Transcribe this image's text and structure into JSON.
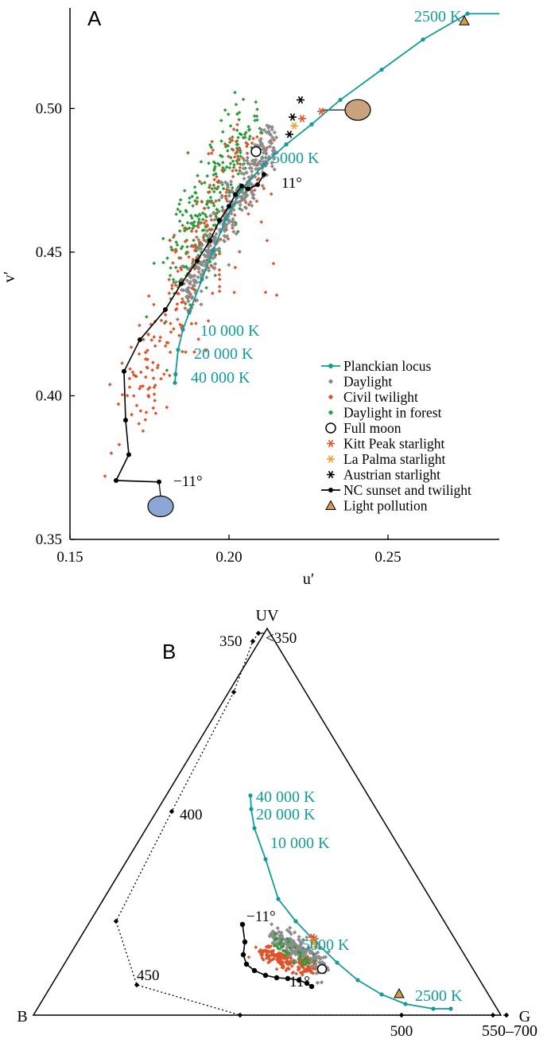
{
  "chart_data": [
    {
      "panel": "A",
      "type": "scatter",
      "xlabel": "u′",
      "ylabel": "v′",
      "xlim": [
        0.15,
        0.285
      ],
      "ylim": [
        0.35,
        0.535
      ],
      "xticks": [
        "0.15",
        "0.20",
        "0.25"
      ],
      "yticks": [
        "0.35",
        "0.40",
        "0.45",
        "0.50"
      ],
      "grid": false,
      "legend_position": "bottom-right",
      "legend": [
        {
          "name": "Planckian locus",
          "marker": "line-dot",
          "color": "#139a9a"
        },
        {
          "name": "Daylight",
          "marker": "diamond",
          "color": "#8c8c8c"
        },
        {
          "name": "Civil twilight",
          "marker": "diamond",
          "color": "#e0522a"
        },
        {
          "name": "Daylight in forest",
          "marker": "diamond",
          "color": "#2e9a3a"
        },
        {
          "name": "Full moon",
          "marker": "open-circle",
          "color": "#000000"
        },
        {
          "name": "Kitt Peak starlight",
          "marker": "asterisk",
          "color": "#e0522a"
        },
        {
          "name": "La Palma starlight",
          "marker": "asterisk",
          "color": "#f0a030"
        },
        {
          "name": "Austrian starlight",
          "marker": "asterisk",
          "color": "#000000"
        },
        {
          "name": "NC sunset and twilight",
          "marker": "line-dot",
          "color": "#000000"
        },
        {
          "name": "Light pollution",
          "marker": "triangle",
          "color": "#d99a4a"
        }
      ],
      "planckian_locus": {
        "labels": [
          "2500 K",
          "5000 K",
          "10 000 K",
          "20 000 K",
          "40 000 K"
        ],
        "points": [
          [
            0.285,
            0.533
          ],
          [
            0.275,
            0.533
          ],
          [
            0.261,
            0.524
          ],
          [
            0.248,
            0.5135
          ],
          [
            0.235,
            0.503
          ],
          [
            0.226,
            0.4945
          ],
          [
            0.218,
            0.4875
          ],
          [
            0.211,
            0.4805
          ],
          [
            0.204,
            0.472
          ],
          [
            0.199,
            0.4615
          ],
          [
            0.195,
            0.4505
          ],
          [
            0.1915,
            0.4405
          ],
          [
            0.1875,
            0.429
          ],
          [
            0.1855,
            0.423
          ],
          [
            0.184,
            0.416
          ],
          [
            0.1832,
            0.4075
          ],
          [
            0.183,
            0.4045
          ]
        ]
      },
      "nc_sunset_twilight": {
        "start_label": "11°",
        "end_label": "−11°",
        "points": [
          [
            0.211,
            0.477
          ],
          [
            0.209,
            0.4735
          ],
          [
            0.206,
            0.472
          ],
          [
            0.204,
            0.473
          ],
          [
            0.202,
            0.47
          ],
          [
            0.2,
            0.466
          ],
          [
            0.197,
            0.461
          ],
          [
            0.194,
            0.454
          ],
          [
            0.19,
            0.447
          ],
          [
            0.185,
            0.439
          ],
          [
            0.18,
            0.43
          ],
          [
            0.172,
            0.4195
          ],
          [
            0.167,
            0.4085
          ],
          [
            0.1675,
            0.3915
          ],
          [
            0.1685,
            0.3795
          ],
          [
            0.1645,
            0.3705
          ],
          [
            0.178,
            0.37
          ]
        ]
      },
      "full_moon": [
        0.2085,
        0.485
      ],
      "light_pollution": [
        0.274,
        0.5305
      ],
      "kitt_peak_starlight": [
        [
          0.223,
          0.4965
        ],
        [
          0.229,
          0.499
        ]
      ],
      "la_palma_starlight": [
        [
          0.2205,
          0.494
        ]
      ],
      "austrian_starlight": [
        [
          0.2225,
          0.503
        ],
        [
          0.22,
          0.497
        ],
        [
          0.219,
          0.491
        ]
      ],
      "blobs": [
        {
          "center": [
            0.2405,
            0.4995
          ],
          "color": "#c8a37c"
        },
        {
          "center": [
            0.1785,
            0.3615
          ],
          "color": "#8da6d4"
        }
      ]
    },
    {
      "panel": "B",
      "type": "scatter",
      "subtype": "ternary",
      "vertices": [
        "UV",
        "B",
        "G"
      ],
      "g_range_label": "550–700",
      "spectral_locus": {
        "labels": [
          "<350",
          "350",
          "400",
          "450",
          "500"
        ],
        "points": [
          [
            325,
            796
          ],
          [
            318,
            806
          ],
          [
            294,
            870
          ],
          [
            216,
            1020
          ],
          [
            146,
            1158
          ],
          [
            172,
            1238
          ],
          [
            302,
            1276
          ],
          [
            505,
            1276
          ],
          [
            620,
            1276
          ],
          [
            637,
            1276
          ]
        ]
      },
      "planckian_locus": {
        "labels": [
          "40 000 K",
          "20 000 K",
          "10 000 K",
          "5000 K",
          "2500 K"
        ],
        "points": [
          [
            315,
            1000
          ],
          [
            316,
            1017
          ],
          [
            320,
            1041
          ],
          [
            334,
            1080
          ],
          [
            350,
            1130
          ],
          [
            372,
            1158
          ],
          [
            398,
            1185
          ],
          [
            424,
            1210
          ],
          [
            450,
            1232
          ],
          [
            480,
            1250
          ],
          [
            510,
            1262
          ],
          [
            545,
            1268
          ],
          [
            567,
            1268
          ]
        ]
      },
      "nc_sunset_twilight": {
        "start_label": "−11°",
        "end_label": "11°",
        "points": [
          [
            305,
            1162
          ],
          [
            308,
            1184
          ],
          [
            306,
            1200
          ],
          [
            310,
            1212
          ],
          [
            320,
            1220
          ],
          [
            334,
            1226
          ],
          [
            348,
            1229
          ],
          [
            362,
            1230
          ],
          [
            376,
            1232
          ],
          [
            386,
            1236
          ],
          [
            392,
            1240
          ]
        ]
      },
      "full_moon": [
        405,
        1218
      ],
      "light_pollution": [
        502,
        1249
      ],
      "kitt_peak_starlight": [
        [
          393,
          1178
        ],
        [
          396,
          1180
        ]
      ],
      "la_palma_starlight": [
        [
          394,
          1183
        ],
        [
          397,
          1187
        ]
      ]
    }
  ]
}
